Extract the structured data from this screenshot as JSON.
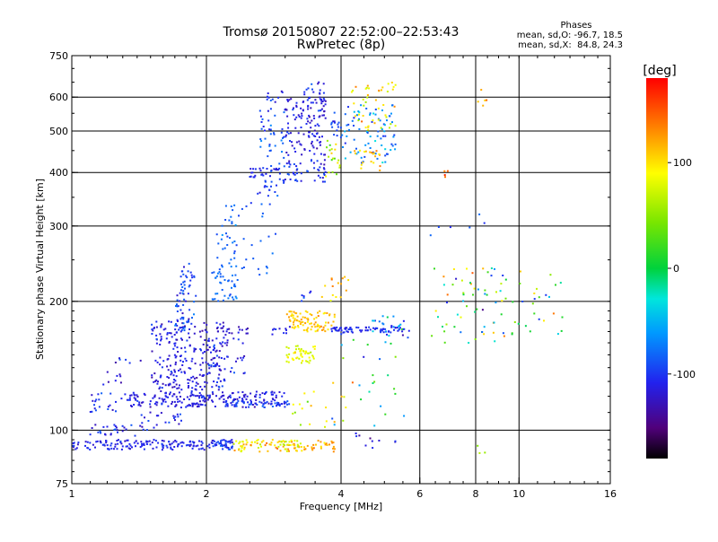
{
  "chart_data": {
    "type": "scatter",
    "title": "Tromsø 20150807 22:52:00–22:53:43",
    "subtitle": "RwPretec (8p)",
    "xlabel": "Frequency [MHz]",
    "ylabel": "Stationary phase Virtual Height [km]",
    "x_scale": "log",
    "y_scale": "log",
    "xlim": [
      1,
      16
    ],
    "ylim": [
      75,
      750
    ],
    "x_ticks": [
      1,
      2,
      4,
      6,
      8,
      10,
      16
    ],
    "x_tick_labels": [
      "1",
      "2",
      "4",
      "6",
      "8",
      "10",
      "16"
    ],
    "y_ticks": [
      75,
      100,
      200,
      300,
      400,
      500,
      600,
      750
    ],
    "y_tick_labels": [
      "75",
      "100",
      "200",
      "300",
      "400",
      "500",
      "600",
      "750"
    ],
    "grid": true,
    "colorbar": {
      "label": "[deg]",
      "range": [
        -180,
        180
      ],
      "ticks": [
        100,
        0,
        -100
      ],
      "tick_labels": [
        "100",
        "0",
        "-100"
      ]
    },
    "stats_box": {
      "title": "Phases",
      "line1": "mean, sd,O: -96.7, 18.5",
      "line2": "mean, sd,X:  84.8, 24.3"
    },
    "clusters": [
      {
        "fmin": 1.0,
        "fmax": 2.3,
        "hmin": 90,
        "hmax": 95,
        "phase": -110,
        "sd": 12,
        "n": 170
      },
      {
        "fmin": 2.1,
        "fmax": 2.3,
        "hmin": 89,
        "hmax": 95,
        "phase": -95,
        "sd": 15,
        "n": 20
      },
      {
        "fmin": 2.3,
        "fmax": 2.7,
        "hmin": 89,
        "hmax": 95,
        "phase": 95,
        "sd": 25,
        "n": 35
      },
      {
        "fmin": 2.7,
        "fmax": 3.9,
        "hmin": 89,
        "hmax": 95,
        "phase": 115,
        "sd": 18,
        "n": 60
      },
      {
        "fmin": 2.9,
        "fmax": 3.3,
        "hmin": 89,
        "hmax": 95,
        "phase": 75,
        "sd": 15,
        "n": 20
      },
      {
        "fmin": 1.1,
        "fmax": 1.4,
        "hmin": 97,
        "hmax": 103,
        "phase": -105,
        "sd": 15,
        "n": 25
      },
      {
        "fmin": 1.1,
        "fmax": 1.35,
        "hmin": 110,
        "hmax": 122,
        "phase": -105,
        "sd": 15,
        "n": 25
      },
      {
        "fmin": 1.15,
        "fmax": 1.3,
        "hmin": 125,
        "hmax": 140,
        "phase": -125,
        "sd": 15,
        "n": 8
      },
      {
        "fmin": 1.25,
        "fmax": 1.45,
        "hmin": 140,
        "hmax": 150,
        "phase": -110,
        "sd": 15,
        "n": 6
      },
      {
        "fmin": 1.35,
        "fmax": 3.0,
        "hmin": 113,
        "hmax": 123,
        "phase": -115,
        "sd": 12,
        "n": 210
      },
      {
        "fmin": 2.2,
        "fmax": 3.2,
        "hmin": 113,
        "hmax": 117,
        "phase": -95,
        "sd": 10,
        "n": 45
      },
      {
        "fmin": 1.4,
        "fmax": 1.8,
        "hmin": 100,
        "hmax": 112,
        "phase": -115,
        "sd": 18,
        "n": 25
      },
      {
        "fmin": 1.5,
        "fmax": 2.2,
        "hmin": 123,
        "hmax": 158,
        "phase": -115,
        "sd": 15,
        "n": 170
      },
      {
        "fmin": 1.5,
        "fmax": 2.25,
        "hmin": 158,
        "hmax": 180,
        "phase": -115,
        "sd": 15,
        "n": 80
      },
      {
        "fmin": 1.7,
        "fmax": 1.9,
        "hmin": 170,
        "hmax": 210,
        "phase": -100,
        "sd": 25,
        "n": 45
      },
      {
        "fmin": 1.75,
        "fmax": 1.88,
        "hmin": 210,
        "hmax": 245,
        "phase": -95,
        "sd": 15,
        "n": 25
      },
      {
        "fmin": 2.0,
        "fmax": 2.45,
        "hmin": 135,
        "hmax": 165,
        "phase": -105,
        "sd": 15,
        "n": 35
      },
      {
        "fmin": 2.05,
        "fmax": 2.35,
        "hmin": 200,
        "hmax": 250,
        "phase": -80,
        "sd": 12,
        "n": 45
      },
      {
        "fmin": 2.1,
        "fmax": 2.35,
        "hmin": 250,
        "hmax": 320,
        "phase": -82,
        "sd": 12,
        "n": 25
      },
      {
        "fmin": 2.4,
        "fmax": 2.9,
        "hmin": 230,
        "hmax": 290,
        "phase": -85,
        "sd": 12,
        "n": 15
      },
      {
        "fmin": 2.2,
        "fmax": 2.9,
        "hmin": 315,
        "hmax": 340,
        "phase": -90,
        "sd": 10,
        "n": 12
      },
      {
        "fmin": 2.1,
        "fmax": 2.5,
        "hmin": 168,
        "hmax": 175,
        "phase": -125,
        "sd": 12,
        "n": 15
      },
      {
        "fmin": 2.8,
        "fmax": 3.1,
        "hmin": 165,
        "hmax": 175,
        "phase": -110,
        "sd": 12,
        "n": 10
      },
      {
        "fmin": 2.6,
        "fmax": 3.0,
        "hmin": 350,
        "hmax": 420,
        "phase": -100,
        "sd": 15,
        "n": 30
      },
      {
        "fmin": 2.6,
        "fmax": 3.0,
        "hmin": 430,
        "hmax": 560,
        "phase": -90,
        "sd": 25,
        "n": 35
      },
      {
        "fmin": 2.7,
        "fmax": 3.0,
        "hmin": 560,
        "hmax": 620,
        "phase": -100,
        "sd": 15,
        "n": 12
      },
      {
        "fmin": 2.5,
        "fmax": 2.9,
        "hmin": 390,
        "hmax": 410,
        "phase": -110,
        "sd": 10,
        "n": 20
      },
      {
        "fmin": 3.0,
        "fmax": 3.7,
        "hmin": 380,
        "hmax": 420,
        "phase": -105,
        "sd": 15,
        "n": 40
      },
      {
        "fmin": 3.0,
        "fmax": 3.7,
        "hmin": 420,
        "hmax": 600,
        "phase": -115,
        "sd": 15,
        "n": 120
      },
      {
        "fmin": 3.3,
        "fmax": 3.7,
        "hmin": 580,
        "hmax": 650,
        "phase": -110,
        "sd": 15,
        "n": 25
      },
      {
        "fmin": 3.7,
        "fmax": 4.0,
        "hmin": 390,
        "hmax": 480,
        "phase": 60,
        "sd": 40,
        "n": 20
      },
      {
        "fmin": 3.8,
        "fmax": 4.0,
        "hmin": 480,
        "hmax": 560,
        "phase": -95,
        "sd": 15,
        "n": 15
      },
      {
        "fmin": 4.0,
        "fmax": 5.3,
        "hmin": 420,
        "hmax": 580,
        "phase": -70,
        "sd": 30,
        "n": 80
      },
      {
        "fmin": 4.2,
        "fmax": 5.3,
        "hmin": 500,
        "hmax": 650,
        "phase": 100,
        "sd": 30,
        "n": 45
      },
      {
        "fmin": 4.2,
        "fmax": 4.9,
        "hmin": 400,
        "hmax": 450,
        "phase": 110,
        "sd": 25,
        "n": 20
      },
      {
        "fmin": 3.0,
        "fmax": 3.9,
        "hmin": 170,
        "hmax": 190,
        "phase": 110,
        "sd": 15,
        "n": 90
      },
      {
        "fmin": 3.0,
        "fmax": 3.5,
        "hmin": 143,
        "hmax": 158,
        "phase": 85,
        "sd": 15,
        "n": 50
      },
      {
        "fmin": 3.8,
        "fmax": 5.7,
        "hmin": 169,
        "hmax": 174,
        "phase": -108,
        "sd": 10,
        "n": 70
      },
      {
        "fmin": 4.7,
        "fmax": 5.7,
        "hmin": 170,
        "hmax": 185,
        "phase": -60,
        "sd": 40,
        "n": 20
      },
      {
        "fmin": 3.6,
        "fmax": 4.2,
        "hmin": 200,
        "hmax": 235,
        "phase": 110,
        "sd": 25,
        "n": 15
      },
      {
        "fmin": 3.2,
        "fmax": 3.5,
        "hmin": 200,
        "hmax": 215,
        "phase": -100,
        "sd": 15,
        "n": 6
      },
      {
        "fmin": 3.0,
        "fmax": 4.1,
        "hmin": 100,
        "hmax": 130,
        "phase": 90,
        "sd": 40,
        "n": 20
      },
      {
        "fmin": 3.8,
        "fmax": 5.8,
        "hmin": 100,
        "hmax": 170,
        "phase": -20,
        "sd": 80,
        "n": 30
      },
      {
        "fmin": 6.3,
        "fmax": 12.5,
        "hmin": 160,
        "hmax": 240,
        "phase": 20,
        "sd": 100,
        "n": 90
      },
      {
        "fmin": 6.3,
        "fmax": 9.5,
        "hmin": 280,
        "hmax": 320,
        "phase": -100,
        "sd": 20,
        "n": 6
      },
      {
        "fmin": 6.8,
        "fmax": 7.0,
        "hmin": 390,
        "hmax": 405,
        "phase": 140,
        "sd": 20,
        "n": 4
      },
      {
        "fmin": 8.0,
        "fmax": 8.5,
        "hmin": 560,
        "hmax": 630,
        "phase": 120,
        "sd": 30,
        "n": 5
      },
      {
        "fmin": 4.2,
        "fmax": 5.6,
        "hmin": 90,
        "hmax": 100,
        "phase": -110,
        "sd": 20,
        "n": 10
      },
      {
        "fmin": 8.0,
        "fmax": 9.0,
        "hmin": 88,
        "hmax": 92,
        "phase": 60,
        "sd": 20,
        "n": 3
      }
    ]
  }
}
